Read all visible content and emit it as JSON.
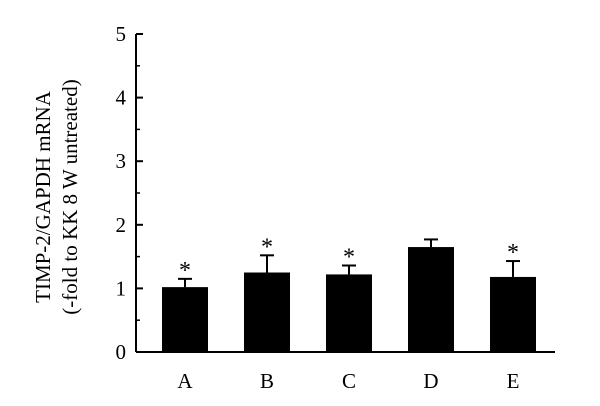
{
  "chart_data": {
    "type": "bar",
    "categories": [
      "A",
      "B",
      "C",
      "D",
      "E"
    ],
    "values": [
      1.02,
      1.25,
      1.22,
      1.65,
      1.18
    ],
    "errors": [
      0.13,
      0.27,
      0.14,
      0.12,
      0.25
    ],
    "significance": [
      "*",
      "*",
      "*",
      "",
      "*"
    ],
    "ylabel_line1": "TIMP-2/GAPDH mRNA",
    "ylabel_line2": "(-fold to KK 8 W untreated)",
    "ylim": [
      0,
      5
    ],
    "yticks": [
      0,
      1,
      2,
      3,
      4,
      5
    ],
    "bar_color": "#000000",
    "grid": false
  }
}
